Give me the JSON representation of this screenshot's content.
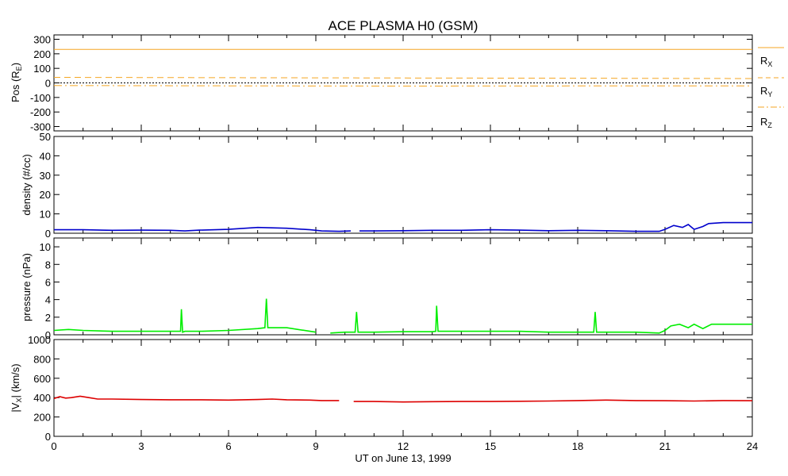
{
  "title": "ACE PLASMA H0 (GSM)",
  "xlabel": "UT on June 13, 1999",
  "colors": {
    "position": "#f5a623",
    "density": "#0000cc",
    "pressure": "#00ee00",
    "velocity": "#dd0000",
    "axes": "#000000"
  },
  "chart_data": [
    {
      "type": "line",
      "title": "ACE PLASMA H0 (GSM)",
      "xlabel": "",
      "ylabel": "Pos (R_E)",
      "xlim": [
        0,
        24
      ],
      "ylim": [
        -330,
        330
      ],
      "yticks": [
        -300,
        -200,
        -100,
        0,
        100,
        200,
        300
      ],
      "zero_line": true,
      "grid": false,
      "legend_position": "right",
      "series": [
        {
          "name": "R_X",
          "style": "solid",
          "x": [
            0,
            24
          ],
          "y": [
            230,
            230
          ]
        },
        {
          "name": "R_Y",
          "style": "dashed",
          "x": [
            0,
            6,
            12,
            18,
            24
          ],
          "y": [
            38,
            36,
            34,
            32,
            30
          ]
        },
        {
          "name": "R_Z",
          "style": "dashdot",
          "x": [
            0,
            6,
            12,
            18,
            24
          ],
          "y": [
            -18,
            -20,
            -22,
            -21,
            -20
          ]
        }
      ]
    },
    {
      "type": "line",
      "ylabel": "density (#/cc)",
      "xlim": [
        0,
        24
      ],
      "ylim": [
        0,
        50
      ],
      "yticks": [
        0,
        10,
        20,
        30,
        40,
        50
      ],
      "grid": false,
      "series": [
        {
          "x": [
            0,
            1,
            2,
            3,
            4,
            4.5,
            5,
            6,
            7,
            8,
            8.8,
            9.2,
            9.8,
            10.2
          ],
          "y": [
            1.8,
            1.8,
            1.5,
            1.6,
            1.5,
            1.2,
            1.6,
            2.0,
            3.0,
            2.6,
            1.8,
            1.2,
            1.0,
            1.2
          ]
        },
        {
          "x": [
            10.5,
            11,
            12,
            13,
            14,
            15,
            16,
            17,
            18,
            19,
            20,
            20.8,
            21,
            21.3,
            21.6,
            21.8,
            22,
            22.3,
            22.5,
            23,
            23.5,
            24
          ],
          "y": [
            1.2,
            1.2,
            1.3,
            1.5,
            1.5,
            1.8,
            1.6,
            1.3,
            1.5,
            1.3,
            1.0,
            1.0,
            2.0,
            4.0,
            3.0,
            4.5,
            2.0,
            3.5,
            5.0,
            5.5,
            5.5,
            5.5
          ]
        }
      ]
    },
    {
      "type": "line",
      "ylabel": "pressure (nPa)",
      "xlim": [
        0,
        24
      ],
      "ylim": [
        0,
        11
      ],
      "yticks": [
        0,
        2,
        4,
        6,
        8,
        10
      ],
      "grid": false,
      "series": [
        {
          "x": [
            0,
            0.5,
            1,
            2,
            3,
            4.2,
            4.35,
            4.38,
            4.42,
            4.5,
            5,
            6,
            7,
            7.25,
            7.3,
            7.35,
            7.5,
            8,
            8.8,
            9.0
          ],
          "y": [
            0.5,
            0.6,
            0.5,
            0.4,
            0.4,
            0.4,
            0.4,
            2.9,
            0.3,
            0.4,
            0.4,
            0.5,
            0.7,
            0.8,
            4.1,
            0.8,
            0.8,
            0.8,
            0.4,
            0.3
          ]
        },
        {
          "x": [
            9.5,
            10,
            10.35,
            10.4,
            10.45,
            10.6,
            11,
            12,
            13,
            13.12,
            13.15,
            13.2,
            14,
            15,
            16,
            17,
            18,
            18.55,
            18.6,
            18.65,
            19,
            20,
            20.8,
            21,
            21.2,
            21.5,
            21.8,
            22,
            22.3,
            22.6,
            23,
            23.5,
            24
          ],
          "y": [
            0.2,
            0.3,
            0.3,
            2.6,
            0.3,
            0.3,
            0.3,
            0.35,
            0.35,
            0.4,
            3.3,
            0.4,
            0.4,
            0.4,
            0.4,
            0.3,
            0.3,
            0.3,
            2.6,
            0.3,
            0.3,
            0.3,
            0.2,
            0.5,
            1.0,
            1.2,
            0.8,
            1.2,
            0.7,
            1.2,
            1.2,
            1.2,
            1.2
          ]
        }
      ]
    },
    {
      "type": "line",
      "xlabel": "UT on June 13, 1999",
      "ylabel": "|V_X| (km/s)",
      "xlim": [
        0,
        24
      ],
      "xticks": [
        0,
        3,
        6,
        9,
        12,
        15,
        18,
        21,
        24
      ],
      "ylim": [
        0,
        1000
      ],
      "yticks": [
        0,
        200,
        400,
        600,
        800,
        1000
      ],
      "grid": false,
      "series": [
        {
          "x": [
            0,
            0.2,
            0.4,
            0.6,
            0.9,
            1.2,
            1.5,
            2,
            3,
            4,
            5,
            6,
            7,
            7.5,
            8,
            8.8,
            9.2,
            9.8
          ],
          "y": [
            390,
            410,
            395,
            400,
            415,
            400,
            385,
            385,
            380,
            378,
            378,
            375,
            380,
            385,
            378,
            375,
            370,
            370
          ]
        },
        {
          "x": [
            10.3,
            11,
            12,
            13,
            14,
            15,
            16,
            17,
            18,
            19,
            20,
            21,
            22,
            23,
            24
          ],
          "y": [
            360,
            360,
            355,
            358,
            360,
            360,
            362,
            365,
            370,
            375,
            370,
            368,
            365,
            370,
            368
          ]
        }
      ]
    }
  ],
  "ylabels": {
    "pos_main": "Pos (R",
    "pos_sub": "E",
    "pos_close": ")",
    "density": "density (#/cc)",
    "pressure": "pressure (nPa)",
    "vx_open": "|V",
    "vx_sub": "X",
    "vx_close": "| (km/s)"
  },
  "legend": {
    "rx": {
      "main": "R",
      "sub": "X"
    },
    "ry": {
      "main": "R",
      "sub": "Y"
    },
    "rz": {
      "main": "R",
      "sub": "Z"
    }
  }
}
